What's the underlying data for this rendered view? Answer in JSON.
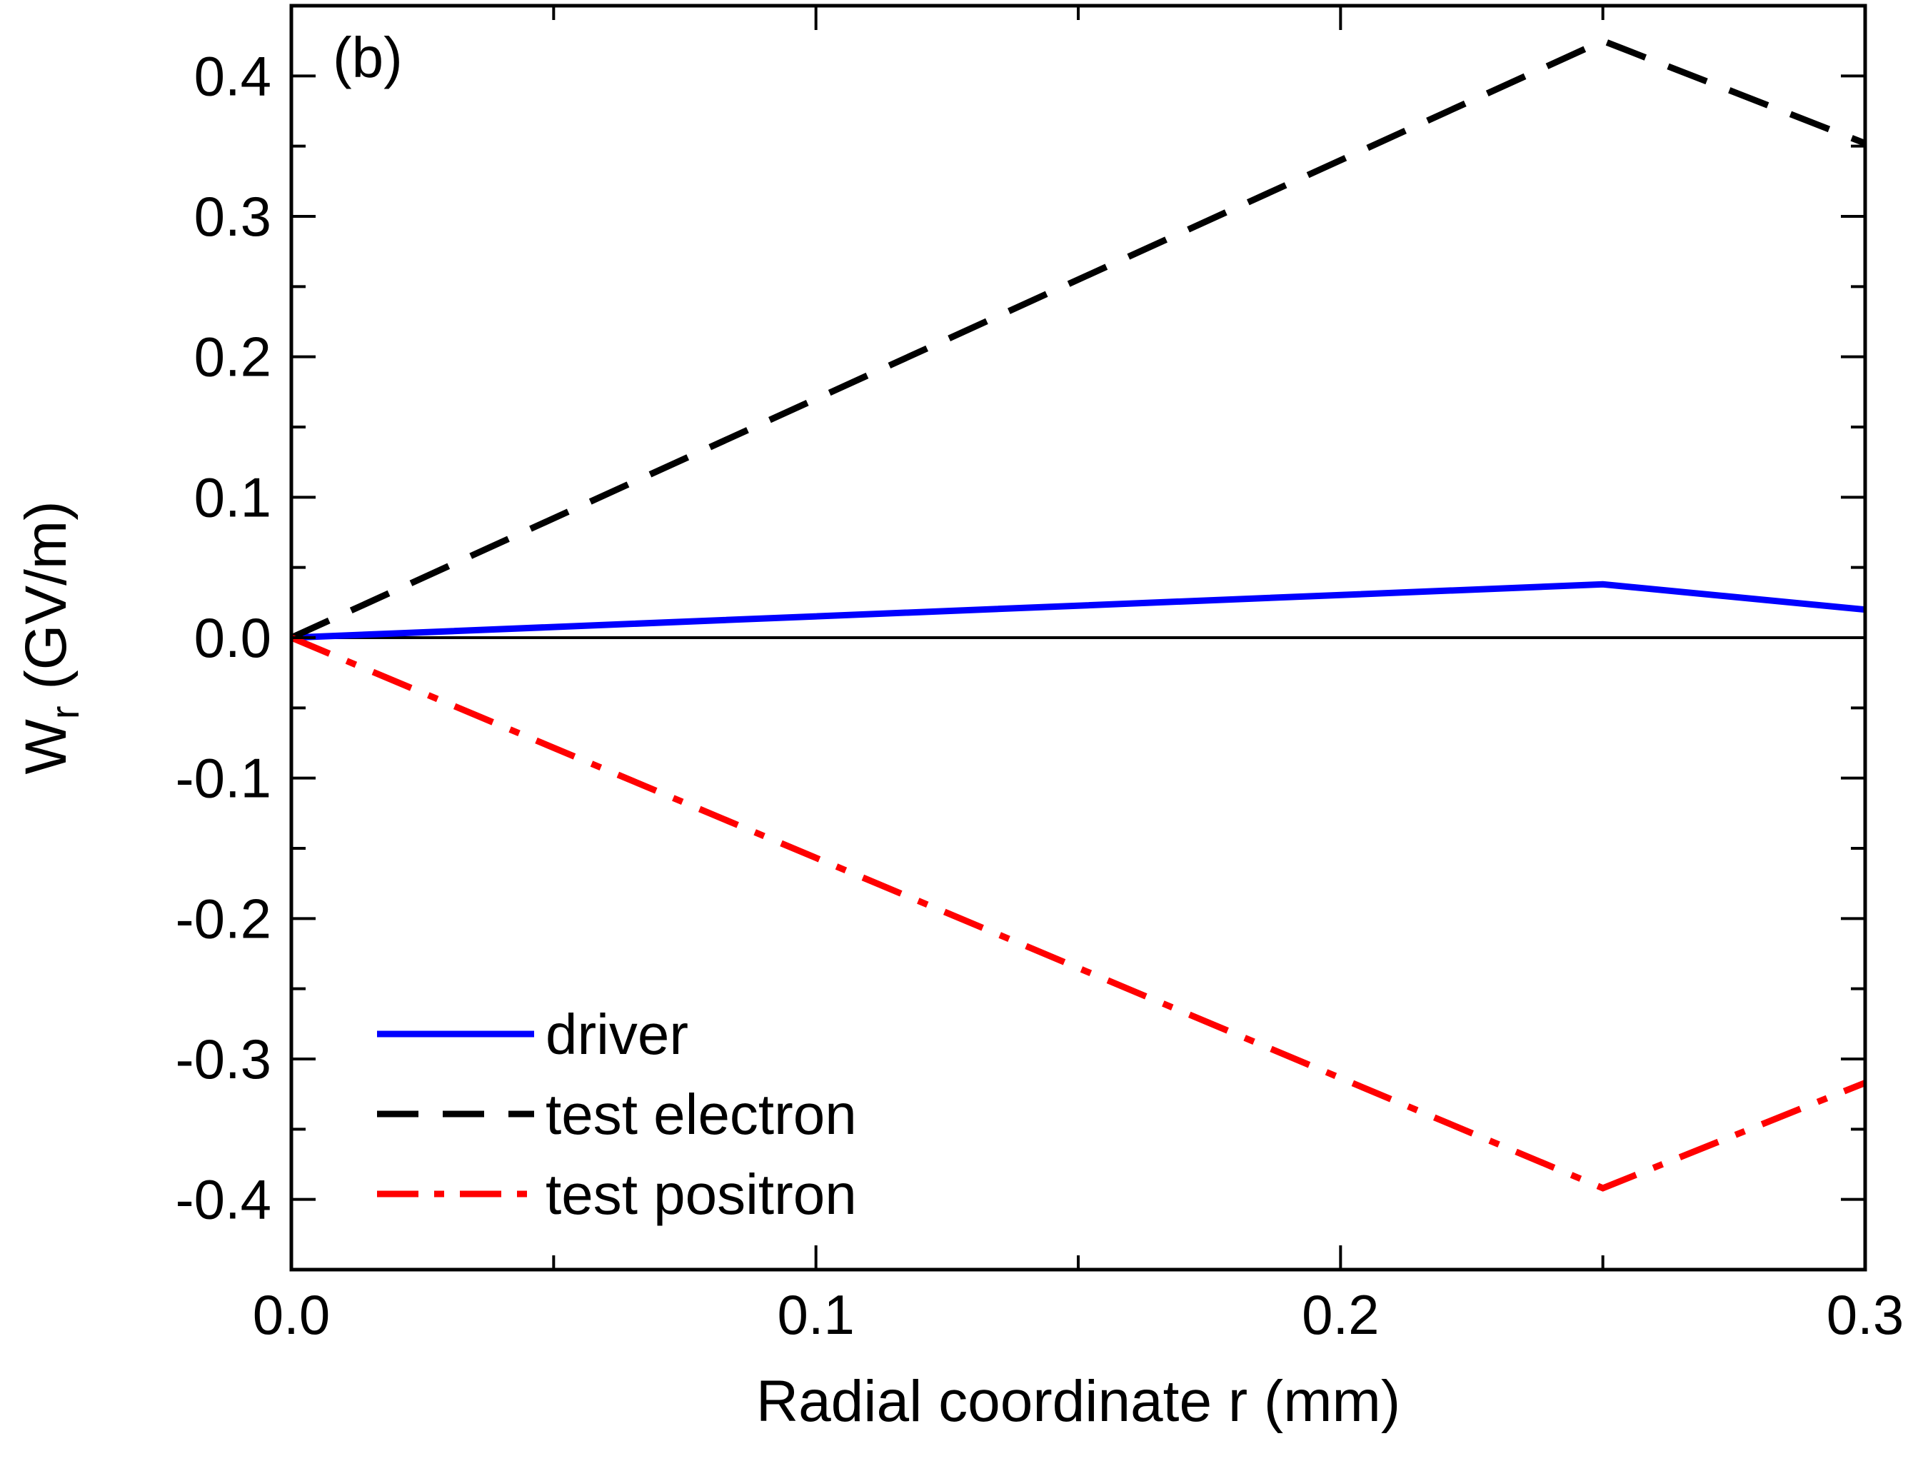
{
  "chart_data": {
    "type": "line",
    "panel_label": "(b)",
    "xlabel": "Radial coordinate r (mm)",
    "ylabel": {
      "main": "W",
      "subscript": "r",
      "unit": " (GV/m)"
    },
    "xlim": [
      0.0,
      0.3
    ],
    "ylim": [
      -0.45,
      0.45
    ],
    "x_ticks": [
      0.0,
      0.1,
      0.2,
      0.3
    ],
    "x_tick_labels": [
      "0.0",
      "0.1",
      "0.2",
      "0.3"
    ],
    "x_minor_ticks": [
      0.05,
      0.15,
      0.25
    ],
    "y_ticks": [
      -0.4,
      -0.3,
      -0.2,
      -0.1,
      0.0,
      0.1,
      0.2,
      0.3,
      0.4
    ],
    "y_tick_labels": [
      "-0.4",
      "-0.3",
      "-0.2",
      "-0.1",
      "0.0",
      "0.1",
      "0.2",
      "0.3",
      "0.4"
    ],
    "y_minor_ticks": [
      -0.35,
      -0.25,
      -0.15,
      -0.05,
      0.05,
      0.15,
      0.25,
      0.35
    ],
    "zero_line": true,
    "grid": false,
    "legend_position": "bottom-left",
    "series": [
      {
        "name": "driver",
        "style": "solid",
        "color": "#0000ff",
        "x": [
          0.0,
          0.25,
          0.3
        ],
        "y": [
          0.0,
          0.038,
          0.02
        ]
      },
      {
        "name": "test electron",
        "style": "dash",
        "color": "#000000",
        "x": [
          0.0,
          0.25,
          0.3
        ],
        "y": [
          0.0,
          0.425,
          0.352
        ]
      },
      {
        "name": "test positron",
        "style": "dashdot",
        "color": "#ff0000",
        "x": [
          0.0,
          0.25,
          0.3
        ],
        "y": [
          0.0,
          -0.392,
          -0.317
        ]
      }
    ]
  }
}
